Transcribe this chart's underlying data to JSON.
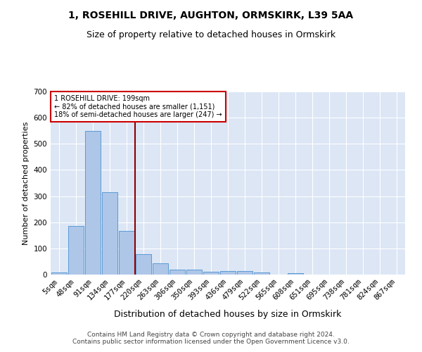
{
  "title": "1, ROSEHILL DRIVE, AUGHTON, ORMSKIRK, L39 5AA",
  "subtitle": "Size of property relative to detached houses in Ormskirk",
  "xlabel": "Distribution of detached houses by size in Ormskirk",
  "ylabel": "Number of detached properties",
  "bar_labels": [
    "5sqm",
    "48sqm",
    "91sqm",
    "134sqm",
    "177sqm",
    "220sqm",
    "263sqm",
    "306sqm",
    "350sqm",
    "393sqm",
    "436sqm",
    "479sqm",
    "522sqm",
    "565sqm",
    "608sqm",
    "651sqm",
    "695sqm",
    "738sqm",
    "781sqm",
    "824sqm",
    "867sqm"
  ],
  "bar_values": [
    8,
    186,
    549,
    315,
    168,
    77,
    42,
    20,
    20,
    12,
    14,
    14,
    9,
    0,
    6,
    0,
    0,
    0,
    0,
    0,
    0
  ],
  "bar_color": "#aec6e8",
  "bar_edge_color": "#5b9bd5",
  "bg_color": "#dce6f5",
  "grid_color": "#ffffff",
  "vline_color": "#8b0000",
  "annotation_text": "1 ROSEHILL DRIVE: 199sqm\n← 82% of detached houses are smaller (1,151)\n18% of semi-detached houses are larger (247) →",
  "annotation_box_color": "#ffffff",
  "annotation_box_edge": "#cc0000",
  "ylim": [
    0,
    700
  ],
  "yticks": [
    0,
    100,
    200,
    300,
    400,
    500,
    600,
    700
  ],
  "footer": "Contains HM Land Registry data © Crown copyright and database right 2024.\nContains public sector information licensed under the Open Government Licence v3.0.",
  "title_fontsize": 10,
  "subtitle_fontsize": 9,
  "xlabel_fontsize": 9,
  "ylabel_fontsize": 8,
  "tick_fontsize": 7.5,
  "footer_fontsize": 6.5,
  "fig_width": 6.0,
  "fig_height": 5.0,
  "fig_dpi": 100
}
